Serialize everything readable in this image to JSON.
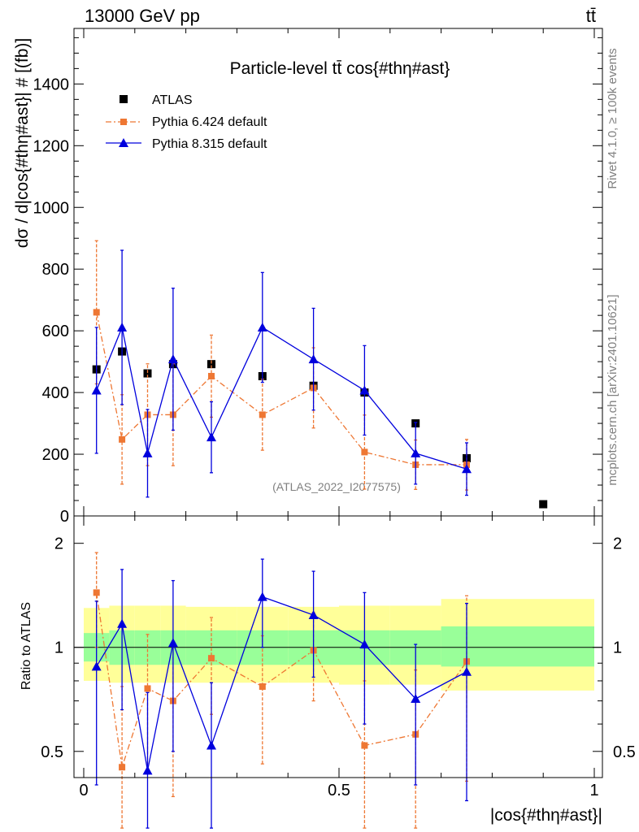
{
  "header": {
    "energy_label": "13000 GeV pp",
    "process_label": "tt̄"
  },
  "side_labels": {
    "rivet": "Rivet 4.1.0, ≥ 100k events",
    "mcplots": "mcplots.cern.ch [arXiv:2401.10621]"
  },
  "colors": {
    "data": "#000000",
    "pythia6": "#ee7733",
    "pythia8": "#0000dd",
    "band_inner": "#99ff99",
    "band_outer": "#ffff99"
  },
  "chart_data": [
    {
      "type": "scatter",
      "panel": "main",
      "title": "Particle-level tt̄ cos{#thη#ast}",
      "xlabel": "|cos{#thη#ast}|",
      "ylabel": "dσ / d|cos{#thη#ast}| # [(fb)]",
      "xlim": [
        0,
        1
      ],
      "ylim": [
        0,
        1580
      ],
      "yticks": [
        0,
        200,
        400,
        600,
        800,
        1000,
        1200,
        1400
      ],
      "ytick_labels": [
        "0",
        "200",
        "400",
        "600",
        "800",
        "1000",
        "1200",
        "1400"
      ],
      "watermark": "(ATLAS_2022_I2077575)",
      "legend": [
        "ATLAS",
        "Pythia 6.424 default",
        "Pythia 8.315 default"
      ],
      "x": [
        0.025,
        0.075,
        0.125,
        0.175,
        0.25,
        0.35,
        0.45,
        0.55,
        0.65,
        0.75,
        0.9
      ],
      "series": [
        {
          "name": "ATLAS",
          "style": "markers",
          "values": [
            475,
            533,
            462,
            492,
            492,
            453,
            422,
            400,
            300,
            187,
            38
          ],
          "errors": [
            0,
            0,
            0,
            0,
            0,
            0,
            0,
            0,
            0,
            0,
            0
          ]
        },
        {
          "name": "Pythia 6.424 default",
          "style": "dashdot",
          "values": [
            660,
            248,
            328,
            328,
            453,
            328,
            415,
            207,
            166,
            166
          ],
          "errors": [
            232,
            145,
            165,
            165,
            133,
            115,
            130,
            120,
            80,
            82
          ]
        },
        {
          "name": "Pythia 8.315 default",
          "style": "solid",
          "values": [
            407,
            611,
            203,
            508,
            255,
            611,
            508,
            407,
            203,
            152
          ],
          "errors": [
            204,
            250,
            142,
            230,
            115,
            178,
            165,
            145,
            100,
            85
          ]
        }
      ]
    },
    {
      "type": "scatter",
      "panel": "ratio",
      "ylabel": "Ratio to ATLAS",
      "yscale": "log",
      "ylim": [
        0.42,
        2.4
      ],
      "yticks": [
        0.5,
        1,
        2
      ],
      "ytick_labels": [
        "0.5",
        "1",
        "2"
      ],
      "xticks": [
        0,
        0.5,
        1
      ],
      "xtick_labels": [
        "0",
        "0.5",
        "1"
      ],
      "x": [
        0.025,
        0.075,
        0.125,
        0.175,
        0.25,
        0.35,
        0.45,
        0.55,
        0.65,
        0.75
      ],
      "band_bins": [
        0,
        0.05,
        0.1,
        0.15,
        0.2,
        0.3,
        0.4,
        0.5,
        0.6,
        0.7,
        1.0
      ],
      "band_inner": [
        [
          0.91,
          1.1
        ],
        [
          0.89,
          1.12
        ],
        [
          0.89,
          1.12
        ],
        [
          0.89,
          1.12
        ],
        [
          0.89,
          1.12
        ],
        [
          0.89,
          1.12
        ],
        [
          0.89,
          1.12
        ],
        [
          0.89,
          1.12
        ],
        [
          0.89,
          1.12
        ],
        [
          0.88,
          1.15
        ]
      ],
      "band_outer": [
        [
          0.8,
          1.3
        ],
        [
          0.79,
          1.32
        ],
        [
          0.79,
          1.32
        ],
        [
          0.79,
          1.32
        ],
        [
          0.79,
          1.31
        ],
        [
          0.79,
          1.31
        ],
        [
          0.79,
          1.31
        ],
        [
          0.78,
          1.32
        ],
        [
          0.78,
          1.32
        ],
        [
          0.75,
          1.38
        ]
      ],
      "series": [
        {
          "name": "Pythia 6.424 default",
          "style": "dashdot",
          "values": [
            1.44,
            0.45,
            0.76,
            0.7,
            0.93,
            0.77,
            0.98,
            0.52,
            0.56,
            0.91
          ],
          "errors": [
            0.44,
            0.32,
            0.33,
            0.33,
            0.29,
            0.31,
            0.28,
            0.28,
            0.3,
            0.5
          ]
        },
        {
          "name": "Pythia 8.315 default",
          "style": "solid",
          "values": [
            0.88,
            1.17,
            0.44,
            1.03,
            0.52,
            1.4,
            1.24,
            1.02,
            0.71,
            0.85
          ],
          "errors": [
            0.48,
            0.51,
            0.3,
            0.53,
            0.27,
            0.4,
            0.42,
            0.42,
            0.31,
            0.49
          ]
        }
      ]
    }
  ]
}
